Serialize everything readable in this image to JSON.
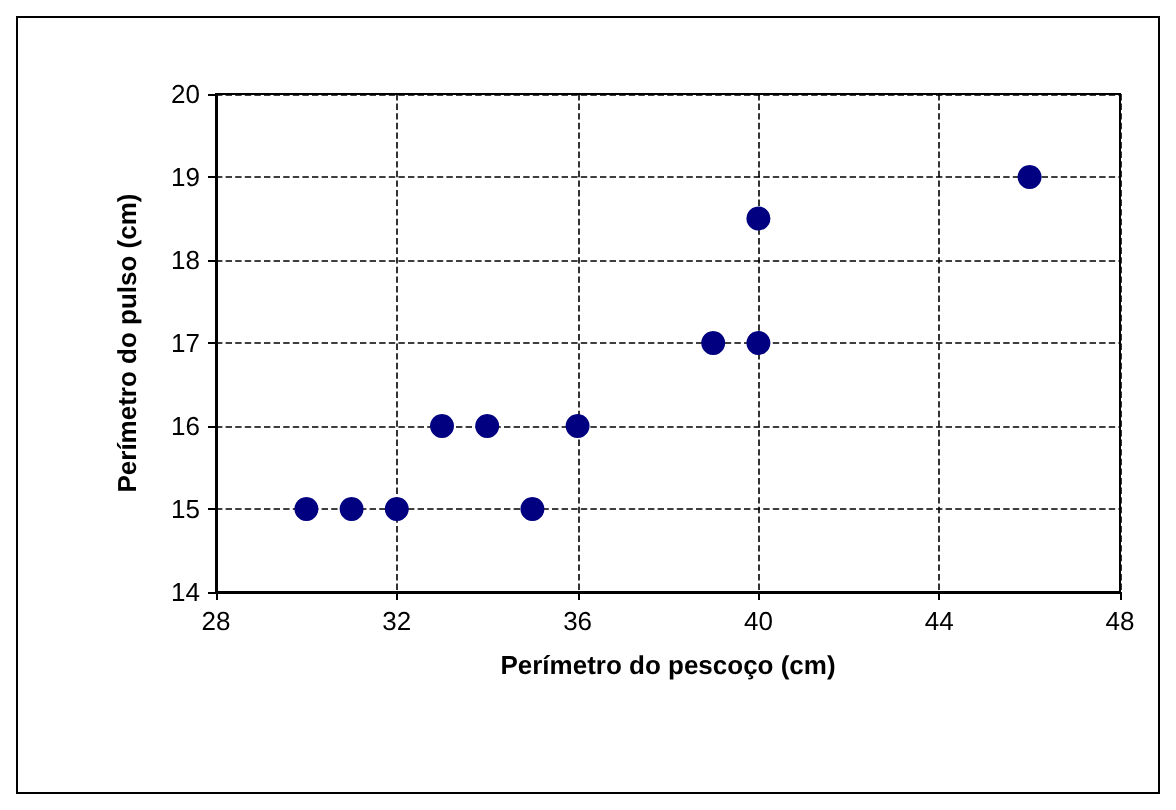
{
  "chart_data": {
    "type": "scatter",
    "xlabel": "Perímetro do pescoço (cm)",
    "ylabel": "Perímetro do pulso (cm)",
    "x": [
      30,
      31,
      32,
      33,
      34,
      35,
      36,
      39,
      40,
      40,
      46
    ],
    "series": [
      {
        "color": "#000080",
        "values": [
          15,
          15,
          15,
          16,
          16,
          15,
          16,
          17,
          17,
          18.5,
          19
        ]
      }
    ],
    "xlim": [
      28,
      48
    ],
    "xticks": [
      28,
      32,
      36,
      40,
      44,
      48
    ],
    "ylim": [
      14,
      20
    ],
    "yticks": [
      14,
      15,
      16,
      17,
      18,
      19,
      20
    ],
    "grid": true,
    "marker": "circle"
  }
}
